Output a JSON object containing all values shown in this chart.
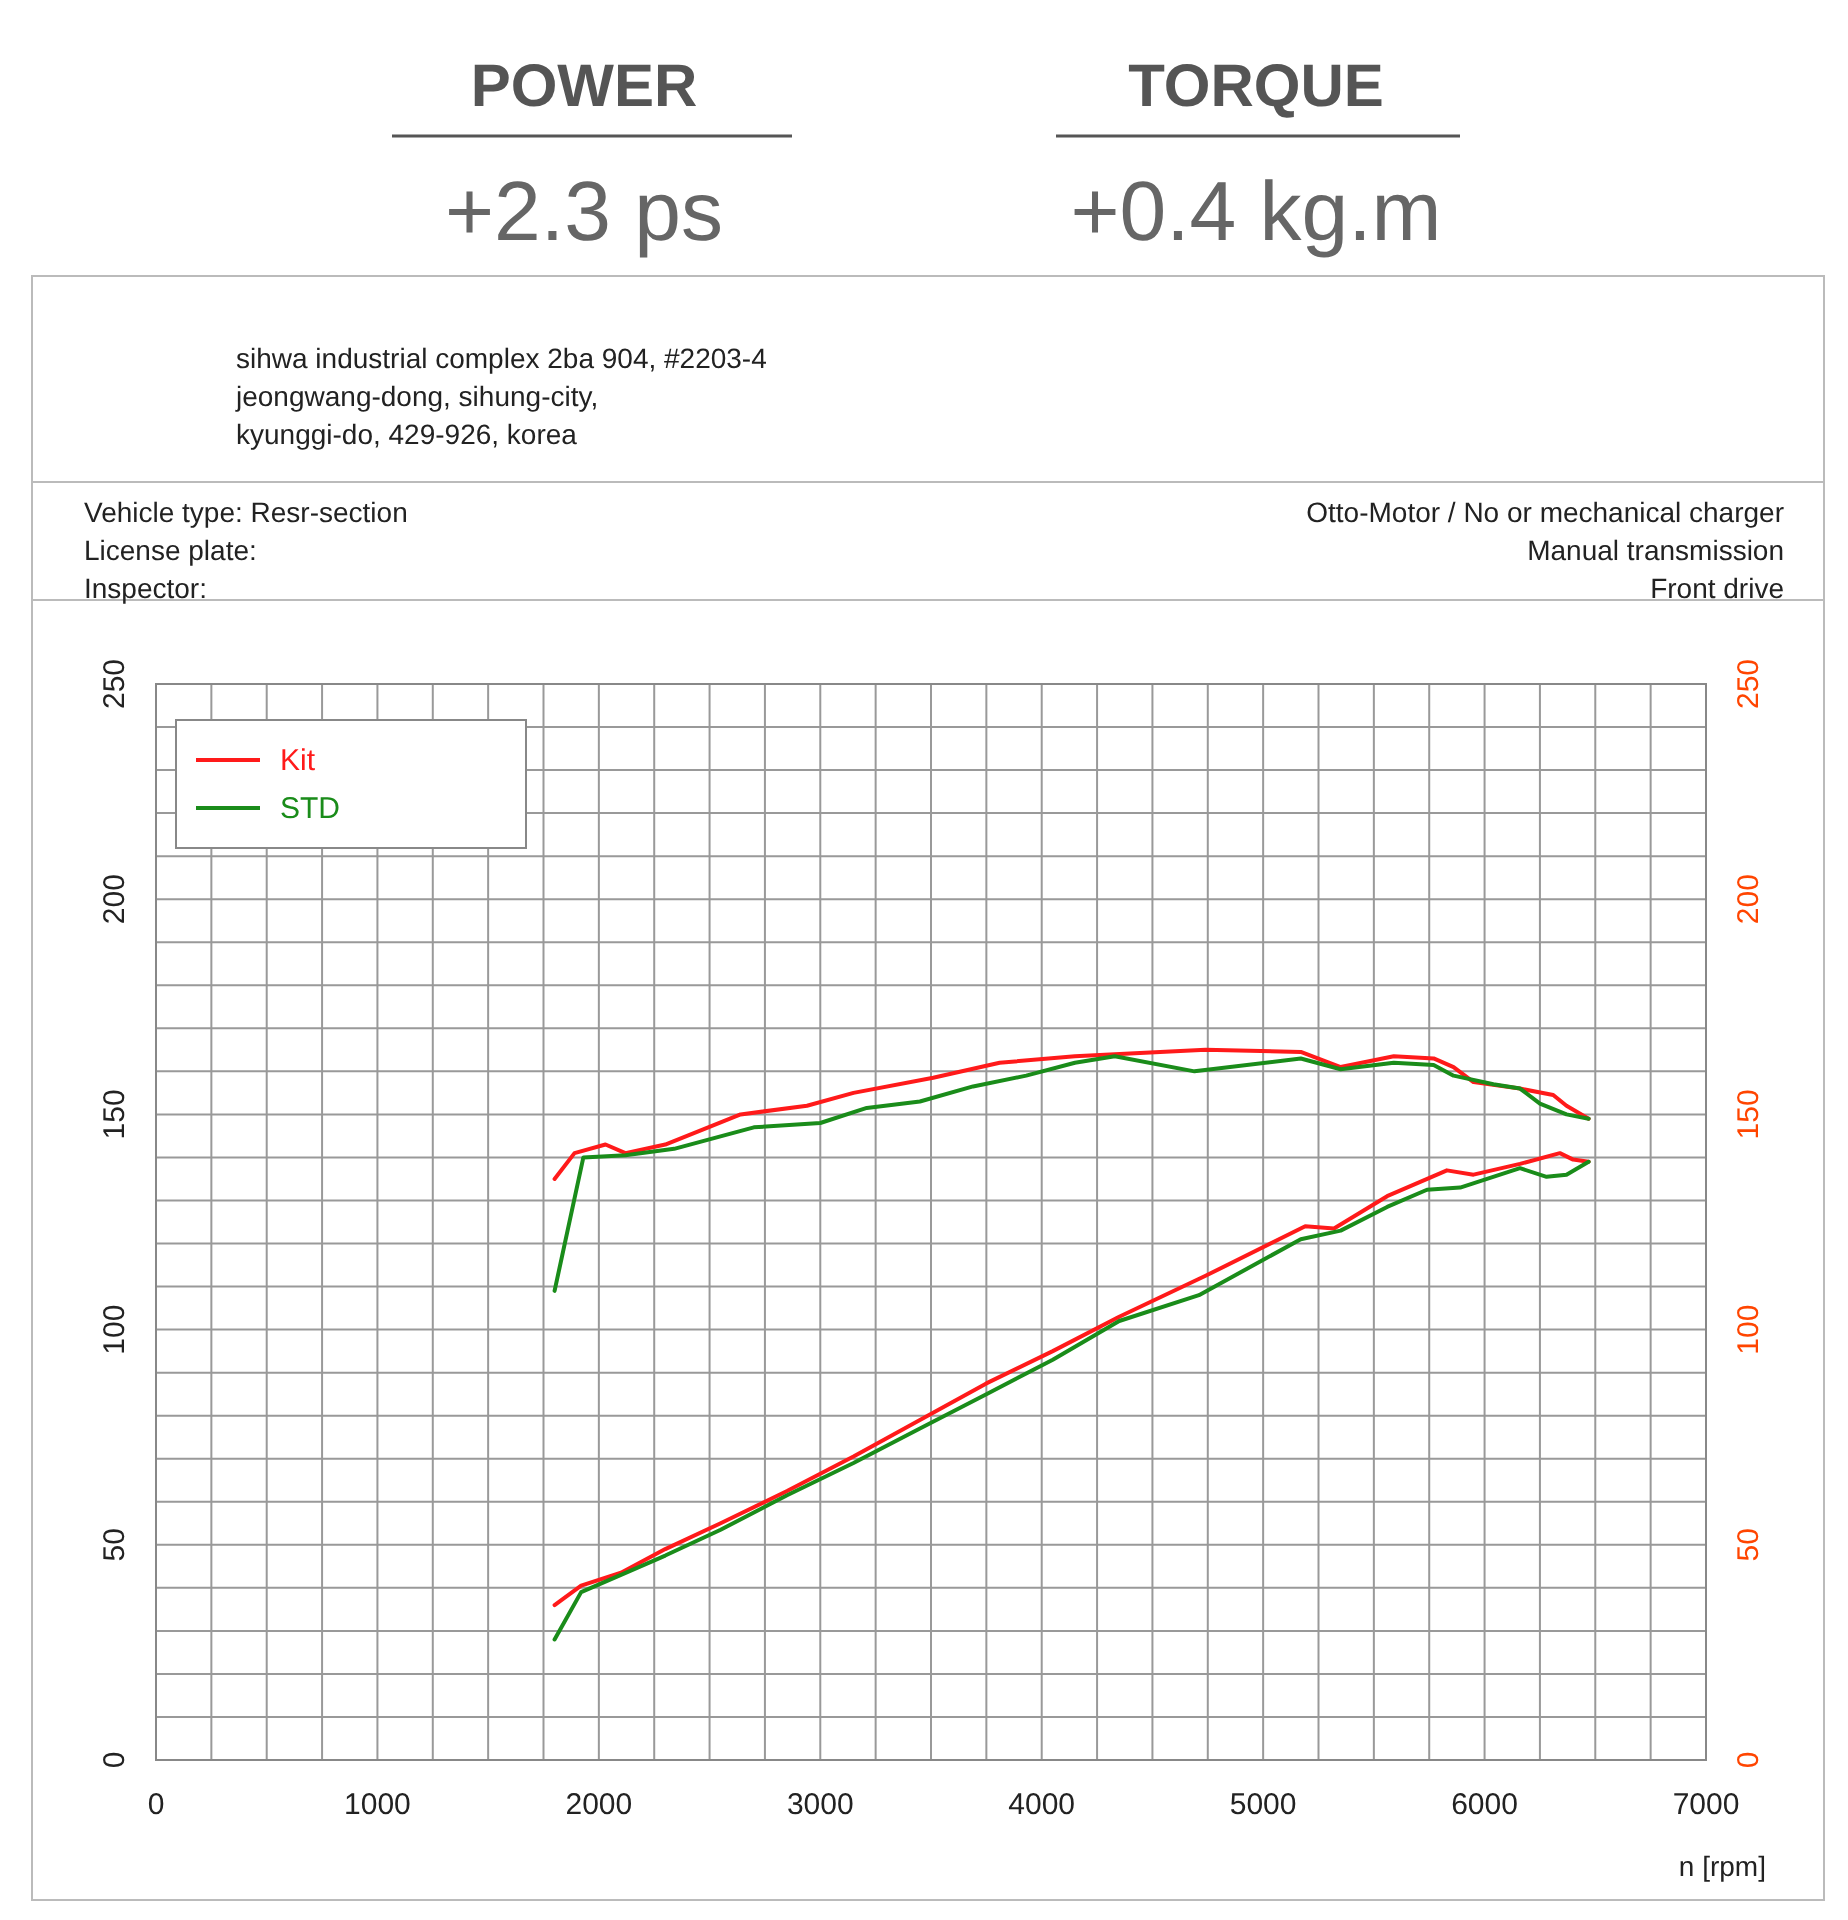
{
  "chart_data": {
    "type": "line",
    "annotations": [
      "POWER",
      "+2.3 ps",
      "TORQUE",
      "+0.4 kg.m",
      "sihwa industrial complex 2ba 904, #2203-4",
      "jeongwang-dong, sihung-city,",
      "kyunggi-do, 429-926, korea",
      "Vehicle type: Resr-section",
      "License plate:",
      "Inspector:",
      "Otto-Motor / No or mechanical charger",
      "Manual transmission",
      "Front drive"
    ],
    "xlabel": "n [rpm]",
    "series": [
      {
        "name": "Kit",
        "color": "#ff1a1a",
        "x": [
          1800,
          1890,
          2030,
          2120,
          2300,
          2640,
          2940,
          3150,
          3510,
          3810,
          4150,
          4330,
          4740,
          5170,
          5350,
          5590,
          5770,
          5860,
          5950,
          6160,
          6310,
          6370,
          6470
        ],
        "values": [
          135,
          141,
          143,
          141,
          143,
          150,
          152,
          155,
          158.5,
          162,
          163.5,
          164,
          165,
          164.5,
          161,
          163.5,
          163,
          161,
          157.5,
          156,
          154.5,
          152,
          149
        ]
      },
      {
        "name": "STD",
        "color": "#1a8c1a",
        "x": [
          1800,
          1930,
          2120,
          2340,
          2700,
          3000,
          3210,
          3450,
          3690,
          3930,
          4150,
          4330,
          4690,
          5170,
          5350,
          5590,
          5770,
          5860,
          6040,
          6160,
          6250,
          6370,
          6470
        ],
        "values": [
          109,
          140,
          140.5,
          142,
          147,
          148,
          151.5,
          153,
          156.5,
          159,
          162,
          163.5,
          160,
          163,
          160.5,
          162,
          161.5,
          159,
          157,
          156,
          152.5,
          150,
          149
        ]
      },
      {
        "color": "#ff1a1a",
        "x": [
          1800,
          1920,
          2100,
          2300,
          2550,
          2850,
          3150,
          3450,
          3750,
          4050,
          4350,
          4740,
          5190,
          5320,
          5560,
          5830,
          5950,
          6160,
          6340,
          6400,
          6470
        ],
        "values": [
          36,
          40.5,
          43.5,
          49,
          55,
          62.5,
          70.5,
          79,
          87.5,
          95,
          103,
          112.5,
          124,
          123.5,
          131,
          137,
          136,
          138.5,
          141,
          139.5,
          139
        ]
      },
      {
        "color": "#1a8c1a",
        "x": [
          1800,
          1920,
          2100,
          2300,
          2550,
          2850,
          3150,
          3450,
          3750,
          4050,
          4350,
          4710,
          5170,
          5350,
          5560,
          5740,
          5890,
          6160,
          6280,
          6370,
          6470
        ],
        "values": [
          28,
          39,
          43,
          47.5,
          53.5,
          61.5,
          69,
          77,
          85,
          93,
          102,
          108,
          121,
          123,
          128.5,
          132.5,
          133,
          137.5,
          135.5,
          136,
          139
        ]
      }
    ],
    "xlim": [
      0,
      7000
    ],
    "xticks": [
      0,
      {
        "value": 250,
        "label": null
      },
      {
        "value": 500,
        "label": null
      },
      {
        "value": 750,
        "label": null
      },
      1000,
      {
        "value": 1250,
        "label": null
      },
      {
        "value": 1500,
        "label": null
      },
      {
        "value": 1750,
        "label": null
      },
      2000,
      {
        "value": 2250,
        "label": null
      },
      {
        "value": 2500,
        "label": null
      },
      {
        "value": 2750,
        "label": null
      },
      3000,
      {
        "value": 3250,
        "label": null
      },
      {
        "value": 3500,
        "label": null
      },
      {
        "value": 3750,
        "label": null
      },
      4000,
      {
        "value": 4250,
        "label": null
      },
      {
        "value": 4500,
        "label": null
      },
      {
        "value": 4750,
        "label": null
      },
      5000,
      {
        "value": 5250,
        "label": null
      },
      {
        "value": 5500,
        "label": null
      },
      {
        "value": 5750,
        "label": null
      },
      6000,
      {
        "value": 6250,
        "label": null
      },
      {
        "value": 6500,
        "label": null
      },
      {
        "value": 6750,
        "label": null
      },
      7000
    ],
    "ylim": [
      0,
      250
    ],
    "yticks": [
      0,
      {
        "value": 10,
        "label": null
      },
      {
        "value": 20,
        "label": null
      },
      {
        "value": 30,
        "label": null
      },
      {
        "value": 40,
        "label": null
      },
      50,
      {
        "value": 60,
        "label": null
      },
      {
        "value": 70,
        "label": null
      },
      {
        "value": 80,
        "label": null
      },
      {
        "value": 90,
        "label": null
      },
      100,
      {
        "value": 110,
        "label": null
      },
      {
        "value": 120,
        "label": null
      },
      {
        "value": 130,
        "label": null
      },
      {
        "value": 140,
        "label": null
      },
      150,
      {
        "value": 160,
        "label": null
      },
      {
        "value": 170,
        "label": null
      },
      {
        "value": 180,
        "label": null
      },
      {
        "value": 190,
        "label": null
      },
      200,
      {
        "value": 210,
        "label": null
      },
      {
        "value": 220,
        "label": null
      },
      {
        "value": 230,
        "label": null
      },
      {
        "value": 240,
        "label": null
      },
      250
    ],
    "y2lim": [
      0,
      250
    ],
    "y2ticks": [
      0,
      50,
      100,
      150,
      200,
      250
    ],
    "grid": true,
    "legend": "top left",
    "line_style": "solid",
    "marker": "none"
  }
}
